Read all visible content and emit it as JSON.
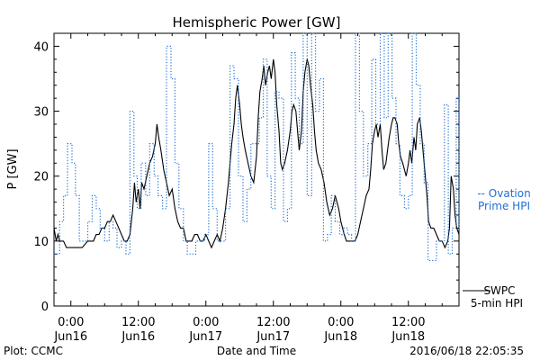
{
  "chart_data": {
    "type": "line",
    "title": "Hemispheric Power [GW]",
    "ylabel": "P [GW]",
    "xlabel": "Date and Time",
    "ylim": [
      0,
      42
    ],
    "xlim_hours": [
      -3,
      69
    ],
    "yticks": [
      0,
      10,
      20,
      30,
      40
    ],
    "xticks": [
      {
        "hour": 0,
        "top": "0:00",
        "bottom": "Jun16"
      },
      {
        "hour": 12,
        "top": "12:00",
        "bottom": "Jun16"
      },
      {
        "hour": 24,
        "top": "0:00",
        "bottom": "Jun17"
      },
      {
        "hour": 36,
        "top": "12:00",
        "bottom": "Jun17"
      },
      {
        "hour": 48,
        "top": "0:00",
        "bottom": "Jun18"
      },
      {
        "hour": 60,
        "top": "12:00",
        "bottom": "Jun18"
      }
    ],
    "series": [
      {
        "name": "SWPC 5-min HPI",
        "color": "#000000",
        "style": "solid",
        "points": [
          [
            -3,
            12
          ],
          [
            -2.6,
            10
          ],
          [
            -2.3,
            11
          ],
          [
            -2,
            10
          ],
          [
            -1.3,
            10
          ],
          [
            -0.8,
            9
          ],
          [
            0,
            9
          ],
          [
            1,
            9
          ],
          [
            2,
            9
          ],
          [
            3,
            10
          ],
          [
            4,
            10
          ],
          [
            4.5,
            11
          ],
          [
            5,
            11
          ],
          [
            5.5,
            12
          ],
          [
            6,
            12
          ],
          [
            6.5,
            13
          ],
          [
            7,
            13
          ],
          [
            7.5,
            14
          ],
          [
            8,
            13
          ],
          [
            8.5,
            12
          ],
          [
            9,
            11
          ],
          [
            9.5,
            10
          ],
          [
            10,
            10
          ],
          [
            10.5,
            11
          ],
          [
            11,
            15
          ],
          [
            11.3,
            19
          ],
          [
            11.6,
            16
          ],
          [
            12,
            18
          ],
          [
            12.3,
            15
          ],
          [
            12.6,
            19
          ],
          [
            13,
            18
          ],
          [
            13.5,
            20
          ],
          [
            14,
            22
          ],
          [
            14.5,
            23
          ],
          [
            15,
            25
          ],
          [
            15.3,
            28
          ],
          [
            15.6,
            26
          ],
          [
            16,
            24
          ],
          [
            16.5,
            21
          ],
          [
            17,
            19
          ],
          [
            17.5,
            17
          ],
          [
            18,
            18
          ],
          [
            18.5,
            15
          ],
          [
            19,
            13
          ],
          [
            19.5,
            12
          ],
          [
            20,
            12
          ],
          [
            20.5,
            10
          ],
          [
            21,
            10
          ],
          [
            21.5,
            10
          ],
          [
            22,
            11
          ],
          [
            22.5,
            11
          ],
          [
            23,
            10
          ],
          [
            23.5,
            10
          ],
          [
            24,
            11
          ],
          [
            24.5,
            10
          ],
          [
            25,
            9
          ],
          [
            25.5,
            10
          ],
          [
            26,
            11
          ],
          [
            26.5,
            10
          ],
          [
            27,
            12
          ],
          [
            27.5,
            15
          ],
          [
            28,
            19
          ],
          [
            28.3,
            22
          ],
          [
            28.6,
            25
          ],
          [
            29,
            28
          ],
          [
            29.3,
            32
          ],
          [
            29.6,
            34
          ],
          [
            30,
            31
          ],
          [
            30.3,
            28
          ],
          [
            30.6,
            26
          ],
          [
            31,
            24
          ],
          [
            31.5,
            22
          ],
          [
            32,
            20
          ],
          [
            32.5,
            19
          ],
          [
            33,
            23
          ],
          [
            33.3,
            29
          ],
          [
            33.6,
            33
          ],
          [
            34,
            35
          ],
          [
            34.3,
            37
          ],
          [
            34.6,
            34
          ],
          [
            35,
            36
          ],
          [
            35.3,
            37
          ],
          [
            35.6,
            35
          ],
          [
            36,
            38
          ],
          [
            36.3,
            36
          ],
          [
            36.6,
            31
          ],
          [
            37,
            27
          ],
          [
            37.3,
            22
          ],
          [
            37.6,
            21
          ],
          [
            38,
            22
          ],
          [
            38.5,
            24
          ],
          [
            39,
            27
          ],
          [
            39.3,
            30
          ],
          [
            39.6,
            31
          ],
          [
            40,
            30
          ],
          [
            40.3,
            27
          ],
          [
            40.6,
            24
          ],
          [
            41,
            27
          ],
          [
            41.3,
            33
          ],
          [
            41.6,
            36
          ],
          [
            42,
            38
          ],
          [
            42.3,
            37
          ],
          [
            42.6,
            34
          ],
          [
            43,
            31
          ],
          [
            43.3,
            27
          ],
          [
            43.6,
            24
          ],
          [
            44,
            22
          ],
          [
            44.5,
            21
          ],
          [
            45,
            19
          ],
          [
            45.5,
            16
          ],
          [
            46,
            14
          ],
          [
            46.5,
            15
          ],
          [
            47,
            17
          ],
          [
            47.3,
            16
          ],
          [
            47.6,
            15
          ],
          [
            48,
            13
          ],
          [
            48.3,
            12
          ],
          [
            48.6,
            11
          ],
          [
            49,
            10
          ],
          [
            49.5,
            10
          ],
          [
            50,
            10
          ],
          [
            50.5,
            10
          ],
          [
            51,
            11
          ],
          [
            51.5,
            13
          ],
          [
            52,
            15
          ],
          [
            52.5,
            17
          ],
          [
            53,
            18
          ],
          [
            53.3,
            21
          ],
          [
            53.6,
            25
          ],
          [
            54,
            27
          ],
          [
            54.3,
            28
          ],
          [
            54.6,
            26
          ],
          [
            55,
            28
          ],
          [
            55.3,
            24
          ],
          [
            55.6,
            21
          ],
          [
            56,
            22
          ],
          [
            56.3,
            24
          ],
          [
            56.6,
            26
          ],
          [
            57,
            28
          ],
          [
            57.3,
            29
          ],
          [
            57.6,
            29
          ],
          [
            58,
            28
          ],
          [
            58.3,
            25
          ],
          [
            58.6,
            23
          ],
          [
            59,
            22
          ],
          [
            59.3,
            21
          ],
          [
            59.6,
            20
          ],
          [
            60,
            22
          ],
          [
            60.3,
            24
          ],
          [
            60.6,
            22
          ],
          [
            61,
            26
          ],
          [
            61.3,
            24
          ],
          [
            61.6,
            28
          ],
          [
            62,
            29
          ],
          [
            62.3,
            27
          ],
          [
            62.6,
            24
          ],
          [
            63,
            20
          ],
          [
            63.3,
            17
          ],
          [
            63.6,
            13
          ],
          [
            64,
            12
          ],
          [
            64.5,
            12
          ],
          [
            65,
            11
          ],
          [
            65.5,
            10
          ],
          [
            66,
            10
          ],
          [
            66.5,
            9
          ],
          [
            67,
            10
          ],
          [
            67.3,
            12
          ],
          [
            67.6,
            20
          ],
          [
            68,
            18
          ],
          [
            68.3,
            14
          ],
          [
            68.6,
            12
          ],
          [
            69,
            11
          ]
        ]
      },
      {
        "name": "Ovation Prime HPI",
        "color": "#1f6fd6",
        "style": "dotted-step",
        "points": [
          [
            -3,
            8
          ],
          [
            -2,
            13
          ],
          [
            -1.3,
            17
          ],
          [
            -0.6,
            25
          ],
          [
            0.2,
            22
          ],
          [
            0.8,
            17
          ],
          [
            1.5,
            10
          ],
          [
            2.3,
            10
          ],
          [
            3,
            13
          ],
          [
            3.8,
            17
          ],
          [
            4.5,
            15
          ],
          [
            5.2,
            12
          ],
          [
            6,
            10
          ],
          [
            6.8,
            13
          ],
          [
            7.5,
            12
          ],
          [
            8.2,
            9
          ],
          [
            9,
            10
          ],
          [
            9.8,
            8
          ],
          [
            10.5,
            30
          ],
          [
            11.2,
            20
          ],
          [
            11.8,
            15
          ],
          [
            12.5,
            22
          ],
          [
            13.3,
            17
          ],
          [
            14,
            25
          ],
          [
            14.8,
            20
          ],
          [
            15.5,
            17
          ],
          [
            16.3,
            15
          ],
          [
            17,
            40
          ],
          [
            17.8,
            35
          ],
          [
            18.5,
            22
          ],
          [
            19.2,
            15
          ],
          [
            20,
            10
          ],
          [
            20.7,
            8
          ],
          [
            21.5,
            8
          ],
          [
            22.2,
            10
          ],
          [
            23,
            10
          ],
          [
            23.8,
            11
          ],
          [
            24.5,
            25
          ],
          [
            25.2,
            15
          ],
          [
            26,
            10
          ],
          [
            26.7,
            10
          ],
          [
            27.5,
            15
          ],
          [
            28.3,
            37
          ],
          [
            29,
            35
          ],
          [
            29.8,
            20
          ],
          [
            30.6,
            13
          ],
          [
            31.3,
            18
          ],
          [
            32,
            25
          ],
          [
            32.8,
            25
          ],
          [
            33.5,
            29
          ],
          [
            34.2,
            38
          ],
          [
            34.9,
            20
          ],
          [
            35.6,
            15
          ],
          [
            36.3,
            33
          ],
          [
            37,
            32
          ],
          [
            37.8,
            13
          ],
          [
            38.5,
            15
          ],
          [
            39.2,
            39
          ],
          [
            39.9,
            32
          ],
          [
            40.6,
            25
          ],
          [
            41.3,
            42
          ],
          [
            42,
            17
          ],
          [
            42.8,
            42
          ],
          [
            43.5,
            30
          ],
          [
            44.2,
            35
          ],
          [
            44.9,
            10
          ],
          [
            45.6,
            11
          ],
          [
            46.3,
            17
          ],
          [
            47,
            13
          ],
          [
            47.8,
            11
          ],
          [
            48.5,
            12
          ],
          [
            49.2,
            11
          ],
          [
            49.9,
            10
          ],
          [
            50.6,
            42
          ],
          [
            51.3,
            30
          ],
          [
            52,
            20
          ],
          [
            52.8,
            25
          ],
          [
            53.5,
            38
          ],
          [
            54.2,
            28
          ],
          [
            55,
            42
          ],
          [
            55.7,
            29
          ],
          [
            56.4,
            42
          ],
          [
            57.1,
            32
          ],
          [
            57.8,
            25
          ],
          [
            58.5,
            17
          ],
          [
            59.3,
            15
          ],
          [
            60,
            17
          ],
          [
            60.7,
            42
          ],
          [
            61.4,
            34
          ],
          [
            62.1,
            25
          ],
          [
            62.8,
            19
          ],
          [
            63.5,
            7
          ],
          [
            64.2,
            7
          ],
          [
            65,
            10
          ],
          [
            65.7,
            10
          ],
          [
            66.4,
            31
          ],
          [
            67.1,
            8
          ],
          [
            67.8,
            12
          ],
          [
            68.5,
            32
          ],
          [
            69,
            12
          ]
        ]
      }
    ],
    "legend": [
      {
        "series": "Ovation Prime HPI",
        "text": "-- Ovation",
        "text2": "Prime HPI"
      },
      {
        "series": "SWPC 5-min HPI",
        "text": "SWPC",
        "text2": "5-min HPI"
      }
    ],
    "legend_position": "right"
  },
  "footer": {
    "left": "Plot: CCMC",
    "right": "2016/06/18 22:05:35"
  }
}
